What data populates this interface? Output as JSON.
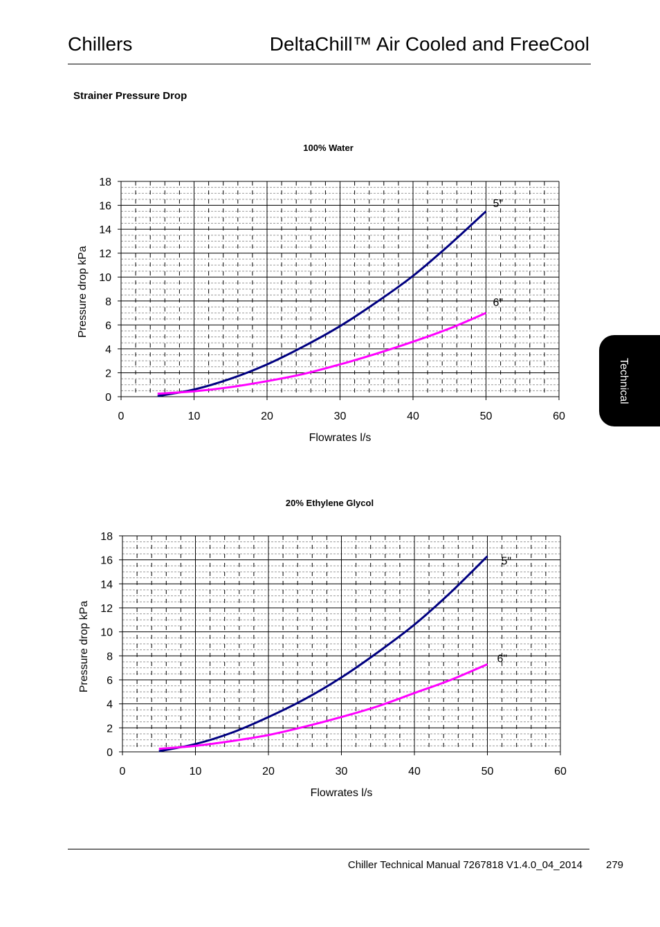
{
  "header": {
    "left": "Chillers",
    "right": "DeltaChill™ Air Cooled and FreeCool"
  },
  "section_title": "Strainer Pressure Drop",
  "side_tab": "Technical",
  "footer": {
    "manual": "Chiller Technical Manual 7267818 V1.4.0_04_2014",
    "page": "279"
  },
  "colors": {
    "series_5in": "#000080",
    "series_6in": "#FF00FF",
    "grid": "#000000"
  },
  "chart_data": [
    {
      "type": "line",
      "title": "100% Water",
      "xlabel": "Flowrates l/s",
      "ylabel": "Pressure drop kPa",
      "xlim": [
        0,
        60
      ],
      "ylim": [
        0,
        18
      ],
      "xticks": [
        0,
        10,
        20,
        30,
        40,
        50,
        60
      ],
      "yticks": [
        0,
        2,
        4,
        6,
        8,
        10,
        12,
        14,
        16,
        18
      ],
      "grid": true,
      "series": [
        {
          "name": "5\"",
          "x": [
            5,
            10,
            15,
            20,
            25,
            30,
            35,
            40,
            45,
            50
          ],
          "y": [
            0.05,
            0.6,
            1.5,
            2.7,
            4.2,
            5.9,
            7.9,
            10.1,
            12.7,
            15.5
          ]
        },
        {
          "name": "6\"",
          "x": [
            5,
            10,
            15,
            20,
            25,
            30,
            35,
            40,
            45,
            50
          ],
          "y": [
            0.25,
            0.45,
            0.8,
            1.3,
            1.9,
            2.7,
            3.6,
            4.6,
            5.7,
            7.0
          ]
        }
      ]
    },
    {
      "type": "line",
      "title": "20% Ethylene Glycol",
      "xlabel": "Flowrates l/s",
      "ylabel": "Pressure drop kPa",
      "xlim": [
        0,
        60
      ],
      "ylim": [
        0,
        18
      ],
      "xticks": [
        0,
        10,
        20,
        30,
        40,
        50,
        60
      ],
      "yticks": [
        0,
        2,
        4,
        6,
        8,
        10,
        12,
        14,
        16,
        18
      ],
      "grid": true,
      "series": [
        {
          "name": "5\"",
          "x": [
            5,
            10,
            15,
            20,
            25,
            30,
            35,
            40,
            45,
            50
          ],
          "y": [
            0.05,
            0.65,
            1.6,
            2.9,
            4.4,
            6.2,
            8.3,
            10.6,
            13.3,
            16.3
          ]
        },
        {
          "name": "6\"",
          "x": [
            5,
            10,
            15,
            20,
            25,
            30,
            35,
            40,
            45,
            50
          ],
          "y": [
            0.25,
            0.5,
            0.9,
            1.4,
            2.1,
            2.9,
            3.8,
            4.9,
            6.0,
            7.3
          ]
        }
      ]
    }
  ]
}
